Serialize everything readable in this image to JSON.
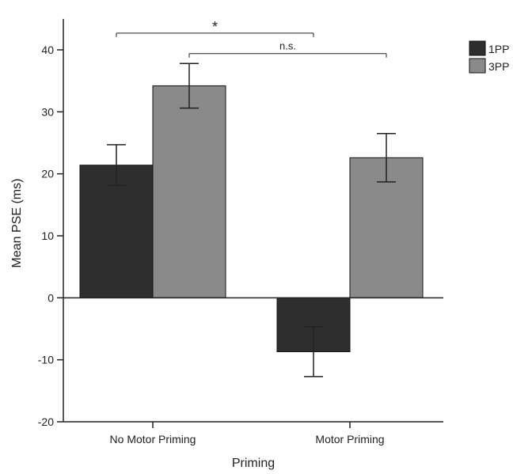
{
  "chart_data": {
    "type": "bar",
    "title": "",
    "xlabel": "Priming",
    "ylabel": "Mean PSE (ms)",
    "categories": [
      "No Motor Priming",
      "Motor Priming"
    ],
    "series": [
      {
        "name": "1PP",
        "color": "#2e2e2e",
        "values": [
          21.4,
          -8.7
        ],
        "errors": [
          3.3,
          4.0
        ]
      },
      {
        "name": "3PP",
        "color": "#8a8a8a",
        "values": [
          34.2,
          22.6
        ],
        "errors": [
          3.6,
          3.9
        ]
      }
    ],
    "ylim": [
      -20,
      45
    ],
    "yticks": [
      -20,
      -10,
      0,
      10,
      20,
      30,
      40
    ],
    "ytick_labels": [
      "-20",
      "-10",
      "0",
      "10",
      "20",
      "30",
      "40"
    ],
    "grid": false,
    "legend_position": "top-right",
    "annotations": [
      {
        "label": "*",
        "from": {
          "category": 0,
          "series": 0
        },
        "to": {
          "category": 1,
          "series": 0
        },
        "y": 42.7
      },
      {
        "label": "n.s.",
        "from": {
          "category": 0,
          "series": 1
        },
        "to": {
          "category": 1,
          "series": 1
        },
        "y": 39.4
      }
    ]
  }
}
